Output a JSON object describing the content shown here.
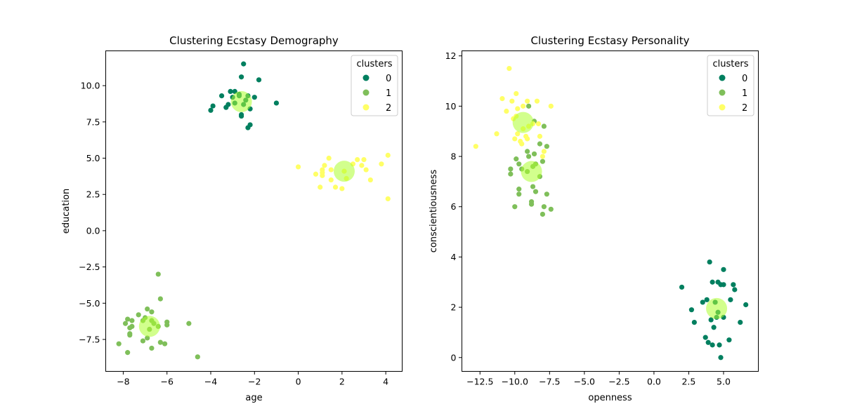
{
  "figure": {
    "background": "#ffffff"
  },
  "colors": {
    "cluster_0": "#007f5f",
    "cluster_1": "#7fbf5a",
    "cluster_2": "#ffff66",
    "centroid": "#adff2f"
  },
  "chart_data": [
    {
      "type": "scatter",
      "title": "Clustering Ecstasy Demography",
      "xlabel": "age",
      "ylabel": "education",
      "xlim": [
        -8.8,
        4.75
      ],
      "ylim": [
        -9.7,
        12.4
      ],
      "xticks": [
        -8,
        -6,
        -4,
        -2,
        0,
        2,
        4
      ],
      "xtick_labels": [
        "−8",
        "−6",
        "−4",
        "−2",
        "0",
        "2",
        "4"
      ],
      "yticks": [
        -7.5,
        -5.0,
        -2.5,
        0.0,
        2.5,
        5.0,
        7.5,
        10.0
      ],
      "ytick_labels": [
        "−7.5",
        "−5.0",
        "−2.5",
        "0.0",
        "2.5",
        "5.0",
        "7.5",
        "10.0"
      ],
      "legend": {
        "title": "clusters",
        "position": "top-right",
        "entries": [
          "0",
          "1",
          "2"
        ]
      },
      "series": [
        {
          "name": "0",
          "points": [
            [
              -2.5,
              11.5
            ],
            [
              -1.8,
              10.4
            ],
            [
              -2.6,
              10.6
            ],
            [
              -3.1,
              9.6
            ],
            [
              -2.9,
              9.6
            ],
            [
              -3.5,
              9.3
            ],
            [
              -3.0,
              9.2
            ],
            [
              -2.7,
              9.3
            ],
            [
              -2.3,
              9.3
            ],
            [
              -2.0,
              9.2
            ],
            [
              -2.4,
              9.0
            ],
            [
              -2.9,
              8.8
            ],
            [
              -3.2,
              8.7
            ],
            [
              -3.3,
              8.5
            ],
            [
              -2.5,
              8.7
            ],
            [
              -3.9,
              8.6
            ],
            [
              -2.2,
              8.4
            ],
            [
              -4.0,
              8.3
            ],
            [
              -2.6,
              8.0
            ],
            [
              -2.6,
              7.9
            ],
            [
              -2.2,
              7.3
            ],
            [
              -2.3,
              7.1
            ],
            [
              -1.0,
              8.8
            ],
            [
              -2.7,
              9.4
            ]
          ]
        },
        {
          "name": "1",
          "points": [
            [
              -6.4,
              -3.0
            ],
            [
              -6.3,
              -4.7
            ],
            [
              -6.9,
              -5.4
            ],
            [
              -6.7,
              -5.6
            ],
            [
              -7.3,
              -5.8
            ],
            [
              -7.0,
              -6.0
            ],
            [
              -7.8,
              -6.1
            ],
            [
              -7.6,
              -6.2
            ],
            [
              -7.1,
              -6.2
            ],
            [
              -6.7,
              -6.2
            ],
            [
              -6.0,
              -6.3
            ],
            [
              -7.9,
              -6.4
            ],
            [
              -6.6,
              -6.4
            ],
            [
              -5.0,
              -6.4
            ],
            [
              -6.0,
              -6.5
            ],
            [
              -7.6,
              -6.6
            ],
            [
              -6.4,
              -6.6
            ],
            [
              -7.7,
              -6.7
            ],
            [
              -6.8,
              -6.8
            ],
            [
              -7.7,
              -7.1
            ],
            [
              -7.7,
              -7.2
            ],
            [
              -6.9,
              -7.4
            ],
            [
              -7.1,
              -7.6
            ],
            [
              -6.3,
              -7.7
            ],
            [
              -6.1,
              -7.8
            ],
            [
              -8.2,
              -7.8
            ],
            [
              -6.7,
              -8.1
            ],
            [
              -7.8,
              -8.4
            ],
            [
              -4.6,
              -8.7
            ]
          ]
        },
        {
          "name": "2",
          "points": [
            [
              0.0,
              4.4
            ],
            [
              1.4,
              5.0
            ],
            [
              2.7,
              4.9
            ],
            [
              3.0,
              4.9
            ],
            [
              4.1,
              5.2
            ],
            [
              2.5,
              4.6
            ],
            [
              1.2,
              4.5
            ],
            [
              3.8,
              4.6
            ],
            [
              2.9,
              4.5
            ],
            [
              1.1,
              4.2
            ],
            [
              1.5,
              4.2
            ],
            [
              3.1,
              4.2
            ],
            [
              1.1,
              4.0
            ],
            [
              2.1,
              4.1
            ],
            [
              0.8,
              3.9
            ],
            [
              1.1,
              3.8
            ],
            [
              2.2,
              3.6
            ],
            [
              1.5,
              3.5
            ],
            [
              3.3,
              3.5
            ],
            [
              1.0,
              3.0
            ],
            [
              1.7,
              3.0
            ],
            [
              2.0,
              2.9
            ],
            [
              4.1,
              2.2
            ]
          ]
        }
      ],
      "centroids": [
        [
          -2.6,
          8.9
        ],
        [
          -6.8,
          -6.6
        ],
        [
          2.1,
          4.1
        ]
      ]
    },
    {
      "type": "scatter",
      "title": "Clustering Ecstasy Personality",
      "xlabel": "openness",
      "ylabel": "conscientiousness",
      "xlim": [
        -13.8,
        7.5
      ],
      "ylim": [
        -0.55,
        12.2
      ],
      "xticks": [
        -12.5,
        -10.0,
        -7.5,
        -5.0,
        -2.5,
        0.0,
        2.5,
        5.0
      ],
      "xtick_labels": [
        "−12.5",
        "−10.0",
        "−7.5",
        "−5.0",
        "−2.5",
        "0.0",
        "2.5",
        "5.0"
      ],
      "yticks": [
        0,
        2,
        4,
        6,
        8,
        10,
        12
      ],
      "ytick_labels": [
        "0",
        "2",
        "4",
        "6",
        "8",
        "10",
        "12"
      ],
      "legend": {
        "title": "clusters",
        "position": "top-right",
        "entries": [
          "0",
          "1",
          "2"
        ]
      },
      "series": [
        {
          "name": "0",
          "points": [
            [
              4.0,
              3.8
            ],
            [
              5.0,
              3.5
            ],
            [
              4.2,
              3.0
            ],
            [
              4.6,
              3.0
            ],
            [
              4.8,
              2.9
            ],
            [
              5.0,
              2.9
            ],
            [
              5.7,
              2.9
            ],
            [
              5.8,
              2.7
            ],
            [
              2.0,
              2.8
            ],
            [
              3.8,
              2.3
            ],
            [
              3.5,
              2.2
            ],
            [
              5.5,
              2.3
            ],
            [
              6.6,
              2.1
            ],
            [
              2.7,
              1.9
            ],
            [
              4.6,
              1.8
            ],
            [
              4.5,
              1.6
            ],
            [
              4.1,
              1.5
            ],
            [
              5.0,
              1.6
            ],
            [
              6.2,
              1.4
            ],
            [
              2.9,
              1.4
            ],
            [
              4.3,
              1.2
            ],
            [
              3.7,
              0.8
            ],
            [
              5.4,
              0.7
            ],
            [
              3.9,
              0.6
            ],
            [
              4.2,
              0.5
            ],
            [
              4.7,
              0.5
            ],
            [
              4.8,
              0.0
            ],
            [
              4.4,
              2.2
            ]
          ]
        },
        {
          "name": "1",
          "points": [
            [
              -9.0,
              10.0
            ],
            [
              -8.6,
              9.4
            ],
            [
              -7.9,
              9.2
            ],
            [
              -9.1,
              8.2
            ],
            [
              -8.2,
              8.5
            ],
            [
              -7.7,
              8.4
            ],
            [
              -9.0,
              8.0
            ],
            [
              -8.6,
              8.1
            ],
            [
              -9.9,
              7.9
            ],
            [
              -9.7,
              7.7
            ],
            [
              -8.5,
              7.7
            ],
            [
              -8.7,
              7.6
            ],
            [
              -8.0,
              7.8
            ],
            [
              -10.3,
              7.5
            ],
            [
              -9.1,
              7.4
            ],
            [
              -10.3,
              7.3
            ],
            [
              -9.5,
              7.5
            ],
            [
              -8.2,
              7.2
            ],
            [
              -8.7,
              6.8
            ],
            [
              -9.7,
              6.7
            ],
            [
              -9.7,
              6.5
            ],
            [
              -7.7,
              6.5
            ],
            [
              -8.5,
              6.6
            ],
            [
              -8.8,
              6.2
            ],
            [
              -8.8,
              6.1
            ],
            [
              -7.9,
              6.0
            ],
            [
              -10.0,
              6.0
            ],
            [
              -7.4,
              5.9
            ],
            [
              -8.0,
              5.7
            ]
          ]
        },
        {
          "name": "2",
          "points": [
            [
              -10.4,
              11.5
            ],
            [
              -9.9,
              10.5
            ],
            [
              -10.9,
              10.3
            ],
            [
              -10.2,
              10.2
            ],
            [
              -9.1,
              10.2
            ],
            [
              -8.4,
              10.2
            ],
            [
              -9.4,
              10.0
            ],
            [
              -7.4,
              10.0
            ],
            [
              -9.8,
              9.9
            ],
            [
              -10.6,
              9.8
            ],
            [
              -9.9,
              9.6
            ],
            [
              -10.1,
              9.5
            ],
            [
              -8.7,
              9.3
            ],
            [
              -8.3,
              9.3
            ],
            [
              -9.0,
              9.2
            ],
            [
              -9.4,
              9.1
            ],
            [
              -11.3,
              8.9
            ],
            [
              -9.8,
              8.9
            ],
            [
              -9.2,
              8.8
            ],
            [
              -8.2,
              8.8
            ],
            [
              -9.1,
              8.7
            ],
            [
              -10.0,
              8.7
            ],
            [
              -9.6,
              8.6
            ],
            [
              -9.5,
              8.5
            ],
            [
              -7.9,
              8.2
            ],
            [
              -8.0,
              8.0
            ],
            [
              -12.8,
              8.4
            ]
          ]
        }
      ],
      "centroids": [
        [
          -9.4,
          9.35
        ],
        [
          -8.8,
          7.4
        ],
        [
          4.5,
          1.95
        ]
      ]
    }
  ]
}
